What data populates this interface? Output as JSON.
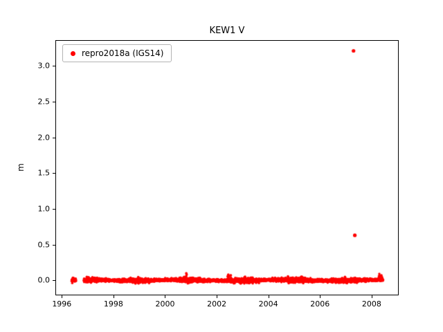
{
  "title": "KEW1 V",
  "ylabel": "m",
  "legend": {
    "label": "repro2018a (IGS14)",
    "marker_color": "#ff0000"
  },
  "chart_data": {
    "type": "scatter",
    "title": "KEW1 V",
    "xlabel": "",
    "ylabel": "m",
    "xlim": [
      1995.75,
      2009.05
    ],
    "ylim": [
      -0.21,
      3.36
    ],
    "xticks": [
      1996,
      1998,
      2000,
      2002,
      2004,
      2006,
      2008
    ],
    "xtick_labels": [
      "1996",
      "1998",
      "2000",
      "2002",
      "2004",
      "2006",
      "2008"
    ],
    "yticks": [
      0.0,
      0.5,
      1.0,
      1.5,
      2.0,
      2.5,
      3.0
    ],
    "ytick_labels": [
      "0.0",
      "0.5",
      "1.0",
      "1.5",
      "2.0",
      "2.5",
      "3.0"
    ],
    "grid": false,
    "legend_position": "upper left",
    "series": [
      {
        "name": "repro2018a (IGS14)",
        "color": "#ff0000",
        "marker_radius_px": 1.8,
        "band": {
          "x_start": 1996.38,
          "x_end": 2008.45,
          "points_per_year": 250,
          "y_mean": 0.0,
          "y_sigma": 0.013,
          "seed": 42,
          "gaps": [
            [
              1996.55,
              1996.85
            ]
          ]
        },
        "bumps": [
          {
            "x": 2000.82,
            "y": 0.1
          },
          {
            "x": 2002.45,
            "y": 0.08
          },
          {
            "x": 2002.55,
            "y": 0.07
          },
          {
            "x": 2003.1,
            "y": 0.05
          },
          {
            "x": 2005.3,
            "y": 0.05
          },
          {
            "x": 2008.3,
            "y": 0.09
          },
          {
            "x": 2008.38,
            "y": 0.07
          }
        ],
        "outliers": [
          {
            "x": 2007.3,
            "y": 3.21
          },
          {
            "x": 2007.35,
            "y": 0.63
          }
        ]
      }
    ]
  }
}
